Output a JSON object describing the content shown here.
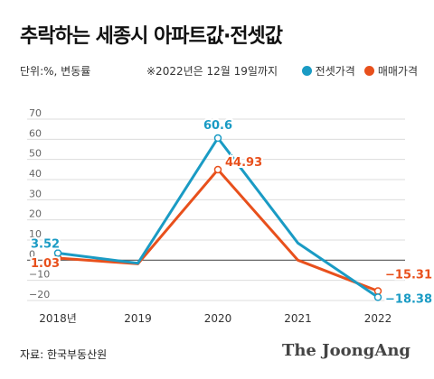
{
  "title": "추락하는 세종시 아파트값·전셋값",
  "unit_note": "단위:%, 변동률",
  "as_of_note": "※2022년은 12월 19일까지",
  "source": "자료: 한국부동산원",
  "brand": "The JoongAng",
  "colors": {
    "jeonse": "#1a9bc4",
    "sale": "#e8501c",
    "grid": "#dcdcdc",
    "zero": "#555555"
  },
  "chart_data": {
    "type": "line",
    "categories": [
      "2018년",
      "2019",
      "2020",
      "2021",
      "2022"
    ],
    "ylim": [
      -20,
      70
    ],
    "yticks": [
      70,
      60,
      50,
      40,
      30,
      20,
      10,
      0,
      -10,
      -20
    ],
    "grid": "horizontal",
    "legend_position": "top-right",
    "series": [
      {
        "key": "jeonse",
        "name": "전셋가격",
        "values": [
          3.52,
          -1.5,
          60.6,
          8.5,
          -18.38
        ],
        "labels": [
          "3.52",
          "",
          "60.6",
          "",
          "-18.38"
        ]
      },
      {
        "key": "sale",
        "name": "매매가격",
        "values": [
          1.03,
          -1.8,
          44.93,
          0.0,
          -15.31
        ],
        "labels": [
          "1.03",
          "",
          "44.93",
          "",
          "-15.31"
        ]
      }
    ]
  }
}
